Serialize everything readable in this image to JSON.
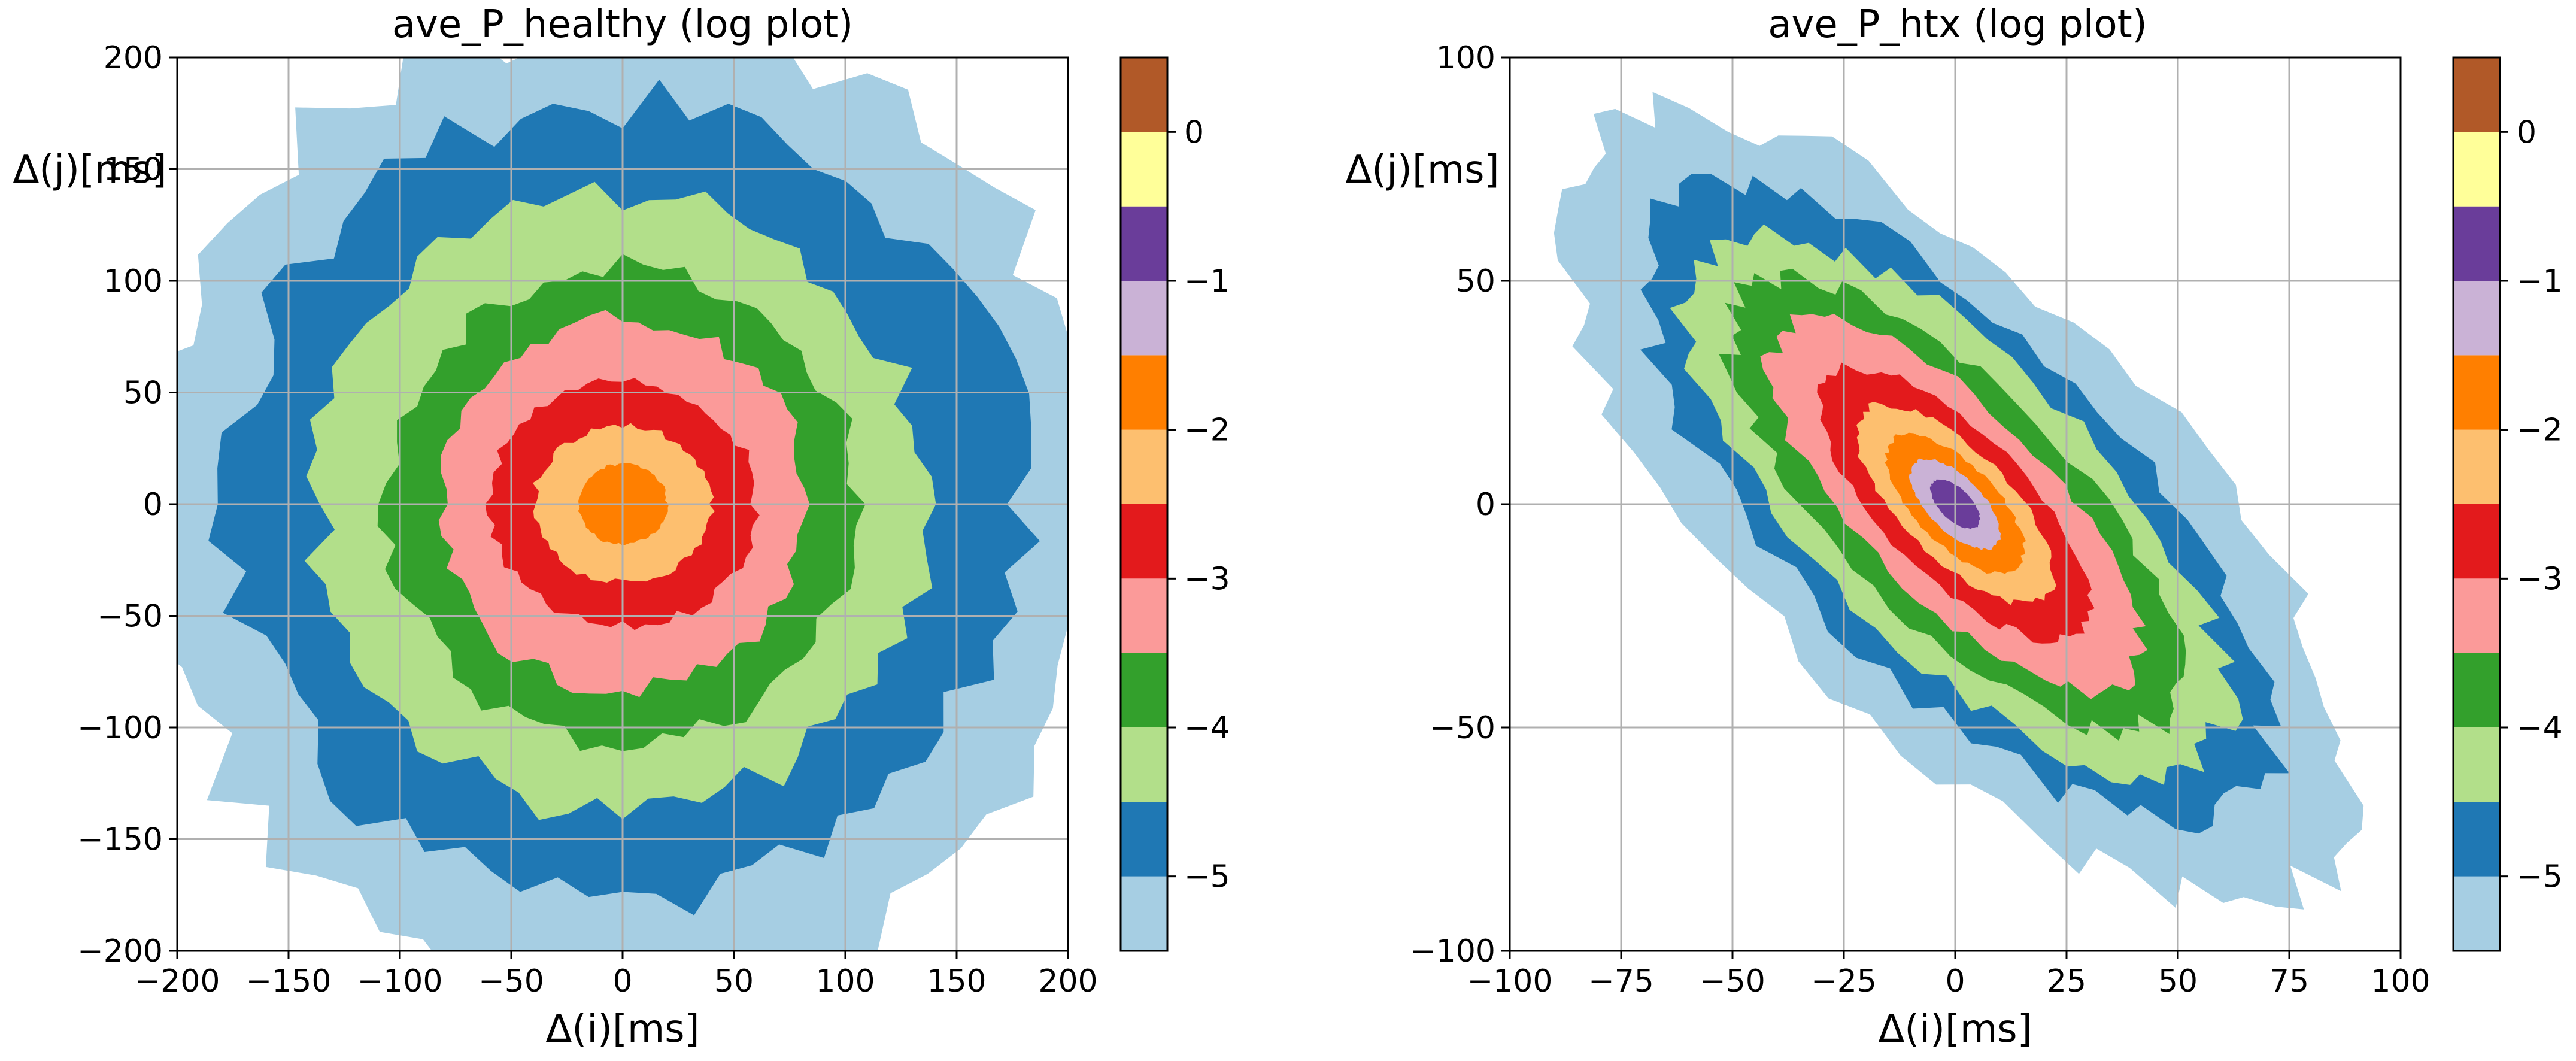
{
  "chart_data": [
    {
      "type": "contourf",
      "title": "ave_P_healthy  (log plot)",
      "xlabel_text": "Δ(i)[ms]",
      "ylabel_text": "Δ(j)[ms]",
      "xlim": [
        -200,
        200
      ],
      "ylim": [
        -200,
        200
      ],
      "xticks": [
        -200,
        -150,
        -100,
        -50,
        0,
        50,
        100,
        150,
        200
      ],
      "yticks": [
        -200,
        -150,
        -100,
        -50,
        0,
        50,
        100,
        150,
        200
      ],
      "grid": true,
      "center": [
        0,
        0
      ],
      "orientation_deg": 0,
      "contour_radii": [
        {
          "level": -5.5,
          "rx": 215,
          "ry": 218
        },
        {
          "level": -5.0,
          "rx": 178,
          "ry": 180
        },
        {
          "level": -4.5,
          "rx": 137,
          "ry": 138
        },
        {
          "level": -4.0,
          "rx": 105,
          "ry": 107
        },
        {
          "level": -3.5,
          "rx": 83,
          "ry": 83
        },
        {
          "level": -3.0,
          "rx": 60,
          "ry": 55
        },
        {
          "level": -2.5,
          "rx": 40,
          "ry": 35
        },
        {
          "level": -2.0,
          "rx": 20,
          "ry": 18
        }
      ],
      "colorbar": {
        "ticks": [
          0,
          -1,
          -2,
          -3,
          -4,
          -5
        ],
        "levels": [
          -5.5,
          -5.0,
          -4.5,
          -4.0,
          -3.5,
          -3.0,
          -2.5,
          -2.0,
          -1.5,
          -1.0,
          -0.5,
          0.0,
          0.5
        ],
        "colors": [
          "#a6cee3",
          "#1f78b4",
          "#b2df8a",
          "#33a02c",
          "#fb9a99",
          "#e31a1c",
          "#fdbf6f",
          "#ff7f00",
          "#cab2d6",
          "#6a3d9a",
          "#ffff99",
          "#b15928"
        ]
      }
    },
    {
      "type": "contourf",
      "title": "ave_P_htx (log plot)",
      "xlabel_text": "Δ(i)[ms]",
      "ylabel_text": "Δ(j)[ms]",
      "xlim": [
        -100,
        100
      ],
      "ylim": [
        -100,
        100
      ],
      "xticks": [
        -100,
        -75,
        -50,
        -25,
        0,
        25,
        50,
        75,
        100
      ],
      "yticks": [
        -100,
        -50,
        0,
        50,
        100
      ],
      "grid": true,
      "center": [
        0,
        0
      ],
      "orientation_deg": -45,
      "contour_radii": [
        {
          "level": -5.5,
          "rx": 115,
          "ry": 48
        },
        {
          "level": -5.0,
          "rx": 93,
          "ry": 38
        },
        {
          "level": -4.5,
          "rx": 80,
          "ry": 32
        },
        {
          "level": -4.0,
          "rx": 67,
          "ry": 26
        },
        {
          "level": -3.5,
          "rx": 55,
          "ry": 21
        },
        {
          "level": -3.0,
          "rx": 40,
          "ry": 16
        },
        {
          "level": -2.5,
          "rx": 29,
          "ry": 12
        },
        {
          "level": -2.0,
          "rx": 20,
          "ry": 9
        },
        {
          "level": -1.5,
          "rx": 13,
          "ry": 6
        },
        {
          "level": -1.0,
          "rx": 7,
          "ry": 3.5
        }
      ],
      "colorbar": {
        "ticks": [
          0,
          -1,
          -2,
          -3,
          -4,
          -5
        ],
        "levels": [
          -5.5,
          -5.0,
          -4.5,
          -4.0,
          -3.5,
          -3.0,
          -2.5,
          -2.0,
          -1.5,
          -1.0,
          -0.5,
          0.0,
          0.5
        ],
        "colors": [
          "#a6cee3",
          "#1f78b4",
          "#b2df8a",
          "#33a02c",
          "#fb9a99",
          "#e31a1c",
          "#fdbf6f",
          "#ff7f00",
          "#cab2d6",
          "#6a3d9a",
          "#ffff99",
          "#b15928"
        ]
      }
    }
  ]
}
